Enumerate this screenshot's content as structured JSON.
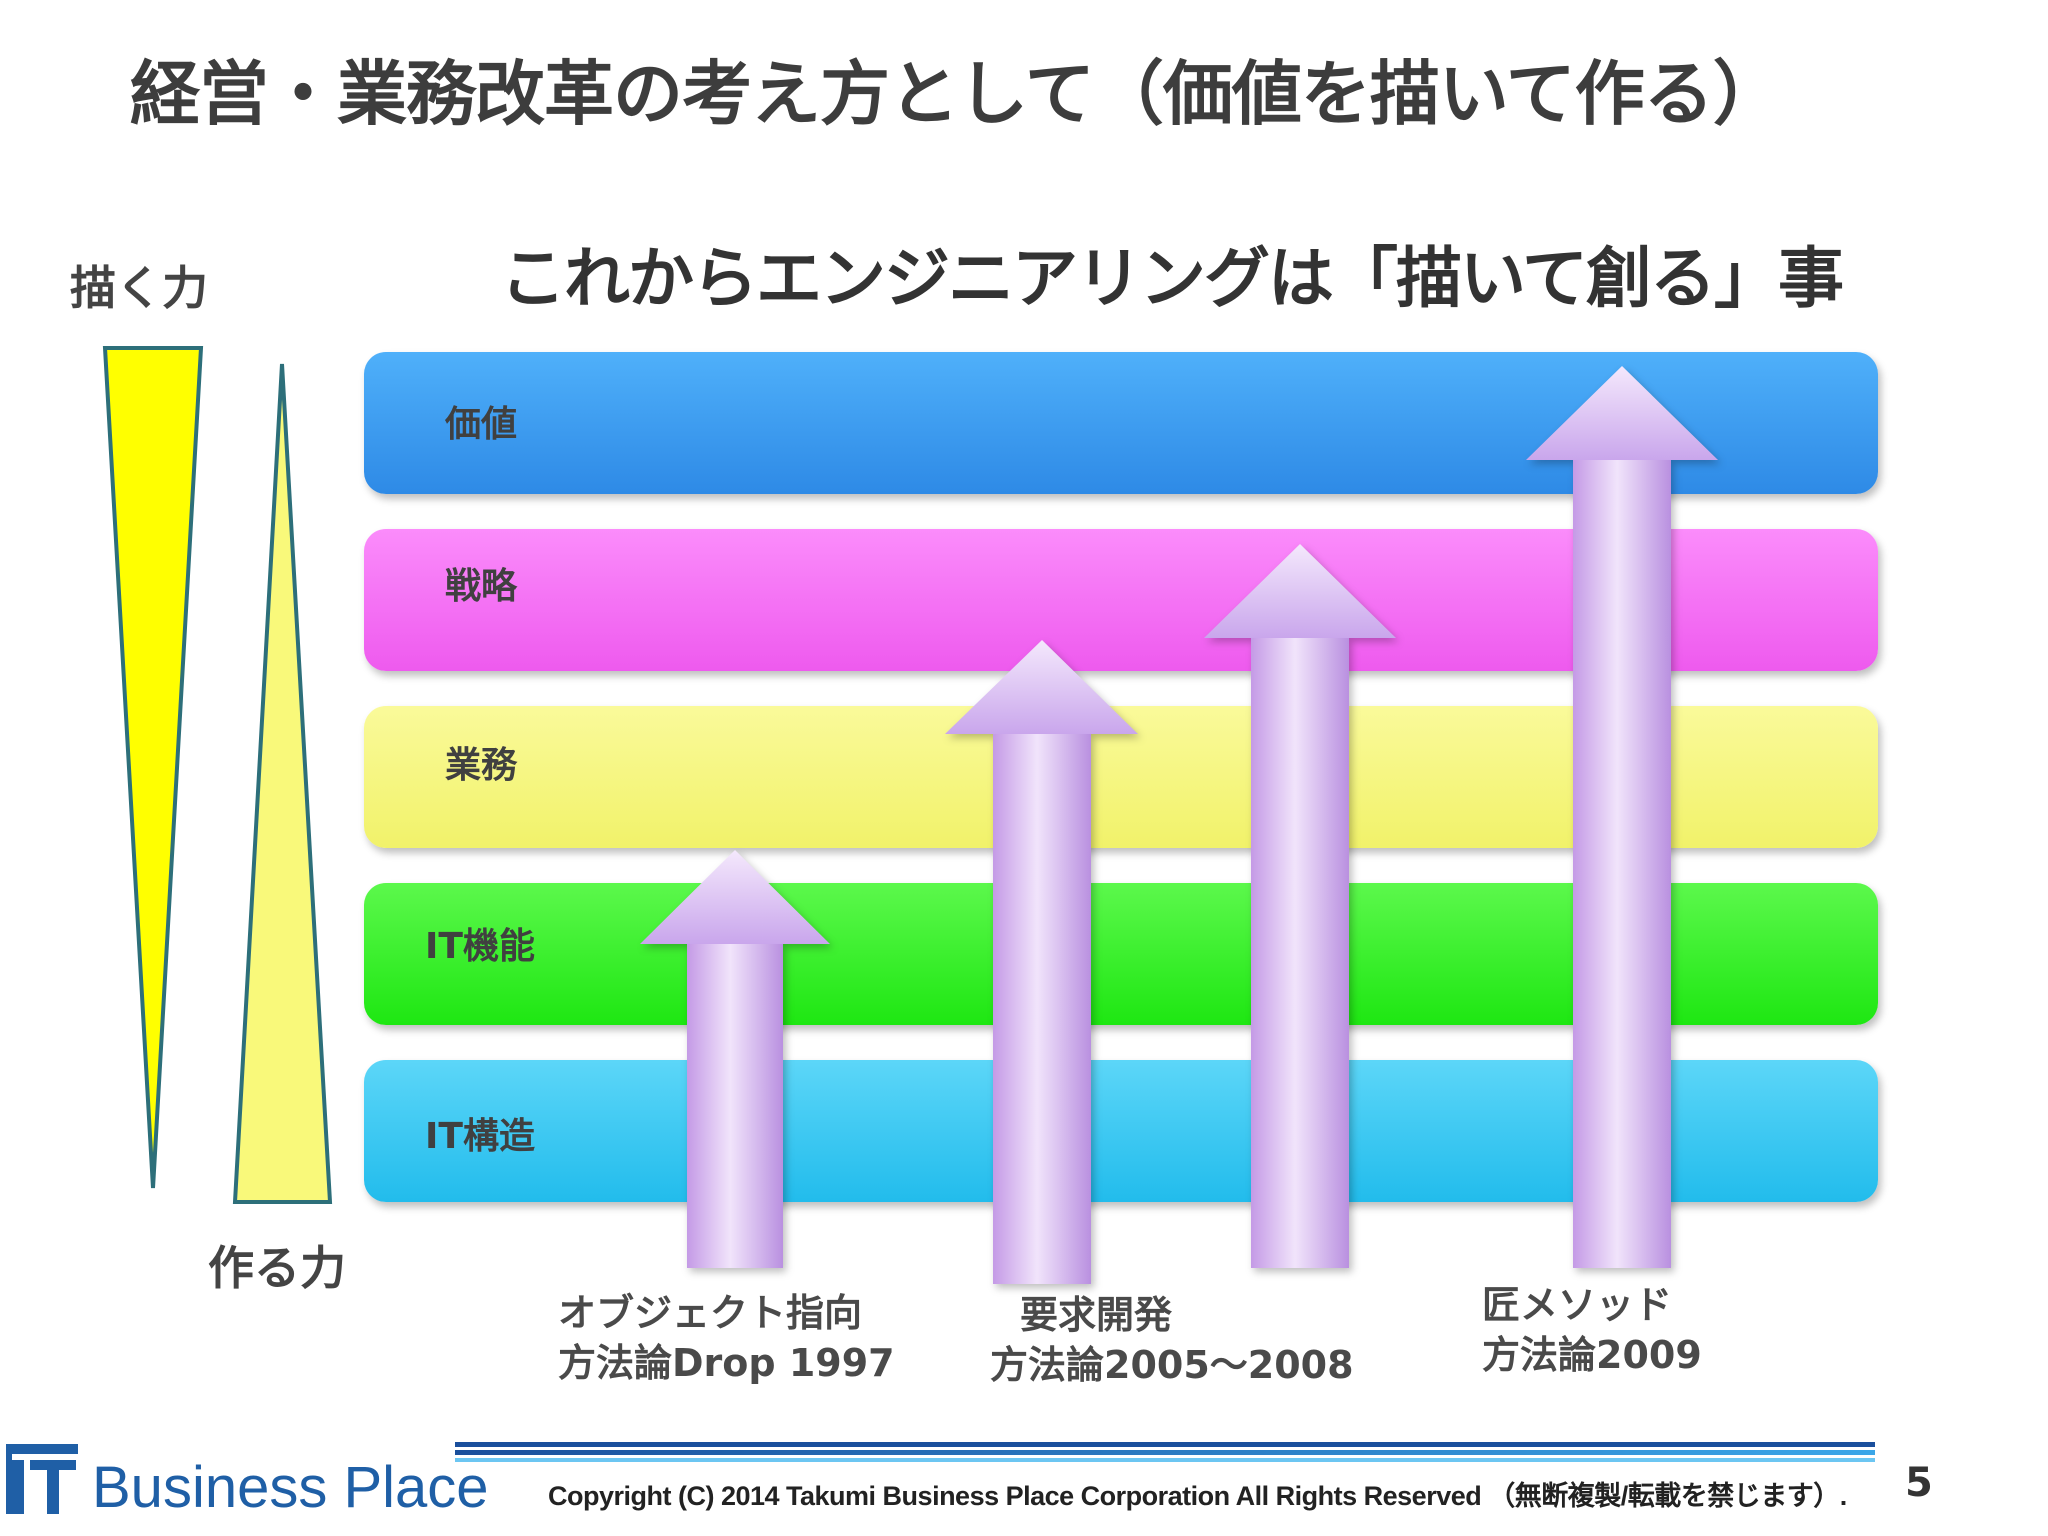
{
  "slide": {
    "title": "経営・業務改革の考え方として（価値を描いて作る）",
    "subtitle": "これからエンジニアリングは「描いて創る」事",
    "left_top_label": "描く力",
    "left_bottom_label": "作る力",
    "bands": [
      {
        "label": "価値",
        "color": "#3a9cf2"
      },
      {
        "label": "戦略",
        "color": "#f76cf7"
      },
      {
        "label": "業務",
        "color": "#f6f77a"
      },
      {
        "label": "IT機能",
        "color": "#2cf21d"
      },
      {
        "label": "IT構造",
        "color": "#31c8f4"
      }
    ],
    "captions": [
      {
        "line1": "オブジェクト指向",
        "line2": "方法論Drop 1997"
      },
      {
        "line1": "要求開発",
        "line2": "方法論2005～2008"
      },
      {
        "line1": "匠メソッド",
        "line2": "方法論2009"
      }
    ],
    "arrow_color": "#d4b4f0"
  },
  "footer": {
    "logo_mark": "IT",
    "logo_text": "Business Place",
    "copyright": "Copyright (C) 2014 Takumi Business Place Corporation All Rights Reserved （無断複製/転載を禁じます）.",
    "page_number": "5"
  }
}
